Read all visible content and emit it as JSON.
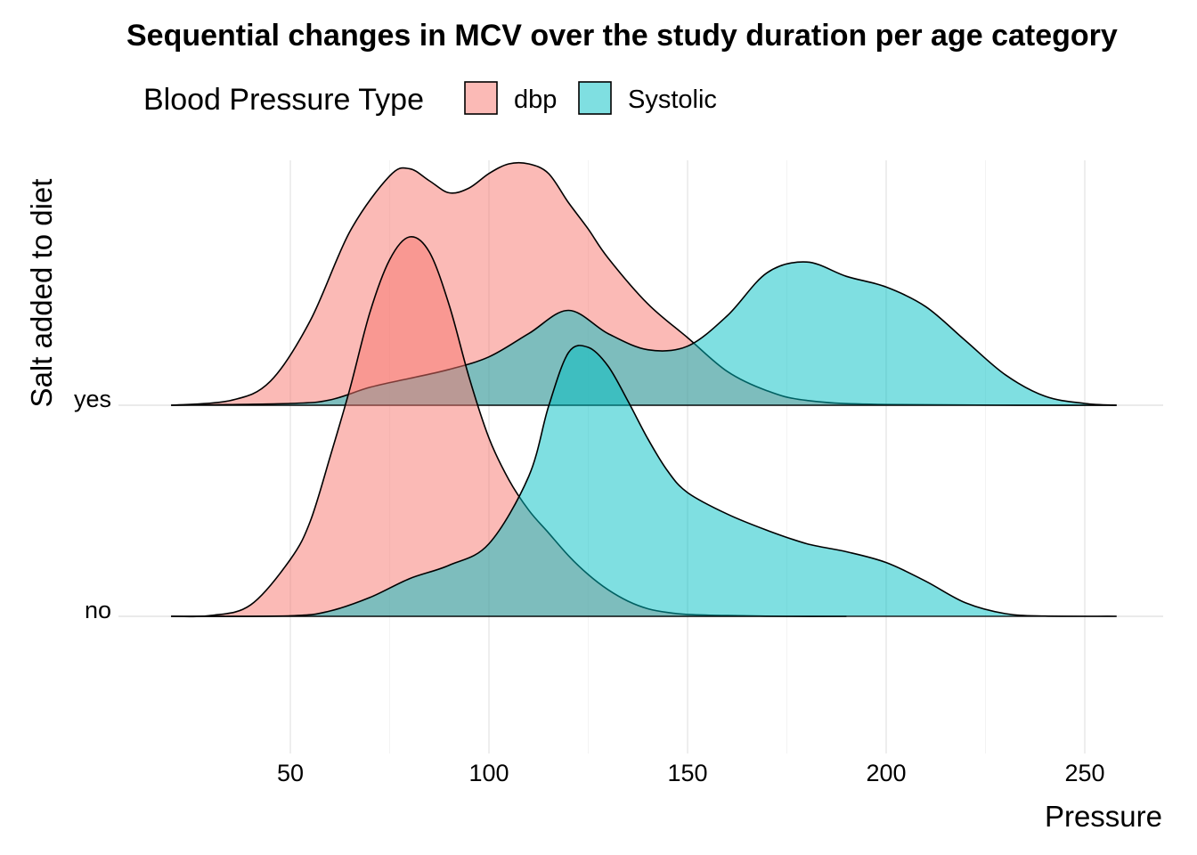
{
  "chart_data": {
    "type": "ridgeline",
    "title": "Sequential changes in MCV over the study duration per age category",
    "xlabel": "Pressure",
    "ylabel": "Salt added to diet",
    "xlim": [
      5,
      272
    ],
    "x_ticks": [
      50,
      100,
      150,
      200,
      250
    ],
    "grid": true,
    "legend": {
      "title": "Blood Pressure Type",
      "position": "top",
      "items": [
        "dbp",
        "Systolic"
      ]
    },
    "colors": {
      "dbp": "#F8766D",
      "Systolic": "#00BFC4"
    },
    "categories": [
      "no",
      "yes"
    ],
    "series": [
      {
        "name": "dbp",
        "group": "no",
        "x": [
          20,
          30,
          40,
          50,
          55,
          60,
          65,
          70,
          75,
          80,
          85,
          90,
          95,
          100,
          105,
          110,
          115,
          120,
          125,
          130,
          135,
          140,
          145,
          150,
          160,
          175,
          190
        ],
        "density": [
          0.0,
          0.002,
          0.03,
          0.15,
          0.25,
          0.42,
          0.6,
          0.8,
          0.94,
          1.0,
          0.96,
          0.82,
          0.63,
          0.47,
          0.36,
          0.28,
          0.22,
          0.16,
          0.11,
          0.07,
          0.04,
          0.02,
          0.01,
          0.005,
          0.002,
          0.0,
          0.0
        ]
      },
      {
        "name": "Systolic",
        "group": "no",
        "x": [
          20,
          50,
          60,
          70,
          80,
          90,
          100,
          110,
          115,
          120,
          125,
          130,
          135,
          140,
          145,
          150,
          160,
          170,
          180,
          190,
          200,
          210,
          220,
          230,
          240,
          258
        ],
        "density": [
          0.0,
          0.002,
          0.02,
          0.07,
          0.14,
          0.19,
          0.27,
          0.52,
          0.78,
          0.98,
          1.0,
          0.93,
          0.8,
          0.66,
          0.54,
          0.46,
          0.38,
          0.32,
          0.27,
          0.24,
          0.2,
          0.13,
          0.05,
          0.01,
          0.001,
          0.0
        ]
      },
      {
        "name": "dbp",
        "group": "yes",
        "x": [
          20,
          35,
          45,
          55,
          65,
          75,
          80,
          85,
          90,
          95,
          100,
          105,
          110,
          115,
          120,
          125,
          130,
          140,
          150,
          160,
          170,
          180,
          200,
          258
        ],
        "density": [
          0.0,
          0.02,
          0.1,
          0.35,
          0.72,
          0.95,
          0.98,
          0.93,
          0.88,
          0.9,
          0.96,
          1.0,
          1.0,
          0.96,
          0.84,
          0.73,
          0.61,
          0.42,
          0.28,
          0.14,
          0.06,
          0.02,
          0.003,
          0.0
        ]
      },
      {
        "name": "Systolic",
        "group": "yes",
        "x": [
          20,
          50,
          60,
          70,
          80,
          90,
          100,
          110,
          120,
          130,
          140,
          150,
          160,
          170,
          180,
          190,
          200,
          210,
          220,
          230,
          240,
          250,
          258
        ],
        "density": [
          0.0,
          0.01,
          0.03,
          0.1,
          0.15,
          0.2,
          0.27,
          0.4,
          0.53,
          0.4,
          0.31,
          0.33,
          0.5,
          0.74,
          0.8,
          0.72,
          0.66,
          0.55,
          0.36,
          0.17,
          0.05,
          0.01,
          0.0
        ]
      }
    ]
  }
}
